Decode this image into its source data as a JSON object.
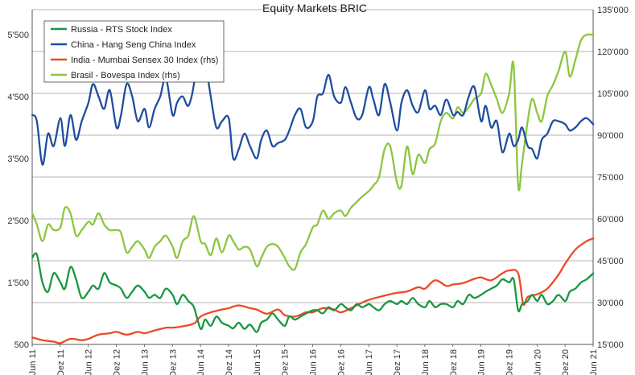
{
  "chart_data": {
    "type": "line",
    "title": "Equity Markets BRIC",
    "xlabel": "",
    "ylabel_left": "",
    "ylabel_right": "",
    "ylim_left": [
      500,
      5900
    ],
    "ylim_right": [
      15000,
      135000
    ],
    "left_ticks": [
      "500",
      "1'500",
      "2'500",
      "3'500",
      "4'500",
      "5'500"
    ],
    "left_tick_values": [
      500,
      1500,
      2500,
      3500,
      4500,
      5500
    ],
    "right_ticks": [
      "15'000",
      "30'000",
      "45'000",
      "60'000",
      "75'000",
      "90'000",
      "105'000",
      "120'000",
      "135'000"
    ],
    "right_tick_values": [
      15000,
      30000,
      45000,
      60000,
      75000,
      90000,
      105000,
      120000,
      135000
    ],
    "x_range": [
      2011.417,
      2021.417
    ],
    "x_tick_labels": [
      "Jun 11",
      "Dez 11",
      "Jun 12",
      "Dez 12",
      "Jun 13",
      "Dez 13",
      "Jun 14",
      "Dez 14",
      "Jun 15",
      "Dez 15",
      "Jun 16",
      "Dez 16",
      "Jun 17",
      "Dez 17",
      "Jun 18",
      "Dez 18",
      "Jun 19",
      "Dez 19",
      "Jun 20",
      "Dez 20",
      "Jun 21"
    ],
    "x_tick_positions": [
      2011.417,
      2011.917,
      2012.417,
      2012.917,
      2013.417,
      2013.917,
      2014.417,
      2014.917,
      2015.417,
      2015.917,
      2016.417,
      2016.917,
      2017.417,
      2017.917,
      2018.417,
      2018.917,
      2019.417,
      2019.917,
      2020.417,
      2020.917,
      2021.417
    ],
    "grid": "horizontal",
    "legend_position": "top-left",
    "colors": {
      "russia": "#1a9640",
      "china": "#1f4e9e",
      "india": "#ec4a24",
      "brasil": "#8cc63f",
      "grid": "#9a9a9a",
      "axis": "#555555"
    },
    "series": [
      {
        "name": "Russia - RTS Stock Index",
        "axis": "left",
        "color": "#1a9640",
        "x": [
          2011.42,
          2011.5,
          2011.6,
          2011.7,
          2011.8,
          2011.92,
          2012.0,
          2012.1,
          2012.2,
          2012.3,
          2012.42,
          2012.5,
          2012.6,
          2012.7,
          2012.8,
          2012.92,
          2013.0,
          2013.1,
          2013.2,
          2013.3,
          2013.42,
          2013.5,
          2013.6,
          2013.7,
          2013.8,
          2013.92,
          2014.0,
          2014.1,
          2014.2,
          2014.3,
          2014.42,
          2014.5,
          2014.6,
          2014.7,
          2014.8,
          2014.92,
          2015.0,
          2015.1,
          2015.2,
          2015.3,
          2015.42,
          2015.5,
          2015.6,
          2015.7,
          2015.8,
          2015.92,
          2016.0,
          2016.1,
          2016.2,
          2016.3,
          2016.42,
          2016.5,
          2016.6,
          2016.7,
          2016.8,
          2016.92,
          2017.0,
          2017.1,
          2017.2,
          2017.3,
          2017.42,
          2017.5,
          2017.6,
          2017.7,
          2017.8,
          2017.92,
          2018.0,
          2018.1,
          2018.2,
          2018.3,
          2018.42,
          2018.5,
          2018.6,
          2018.7,
          2018.8,
          2018.92,
          2019.0,
          2019.1,
          2019.2,
          2019.3,
          2019.42,
          2019.5,
          2019.6,
          2019.7,
          2019.8,
          2019.92,
          2020.0,
          2020.08,
          2020.15,
          2020.25,
          2020.33,
          2020.42,
          2020.5,
          2020.6,
          2020.7,
          2020.8,
          2020.92,
          2021.0,
          2021.1,
          2021.2,
          2021.3,
          2021.42
        ],
        "values": [
          1900,
          1950,
          1500,
          1350,
          1650,
          1500,
          1400,
          1750,
          1550,
          1250,
          1350,
          1450,
          1400,
          1650,
          1500,
          1450,
          1400,
          1250,
          1350,
          1450,
          1350,
          1250,
          1300,
          1250,
          1400,
          1300,
          1150,
          1300,
          1200,
          1100,
          750,
          900,
          800,
          950,
          850,
          800,
          760,
          850,
          750,
          820,
          700,
          850,
          900,
          1000,
          900,
          800,
          950,
          900,
          950,
          1000,
          1050,
          1050,
          1000,
          1100,
          1050,
          1150,
          1100,
          1050,
          1150,
          1100,
          1150,
          1100,
          1050,
          1150,
          1200,
          1150,
          1200,
          1150,
          1250,
          1150,
          1100,
          1200,
          1100,
          1150,
          1150,
          1100,
          1200,
          1150,
          1300,
          1250,
          1300,
          1350,
          1400,
          1450,
          1550,
          1500,
          1550,
          1050,
          1150,
          1200,
          1300,
          1200,
          1300,
          1150,
          1200,
          1300,
          1200,
          1350,
          1400,
          1500,
          1550,
          1650
        ]
      },
      {
        "name": "China - Hang Seng China Index",
        "axis": "left",
        "color": "#1f4e9e",
        "x": [
          2011.42,
          2011.5,
          2011.6,
          2011.7,
          2011.8,
          2011.92,
          2012.0,
          2012.1,
          2012.2,
          2012.3,
          2012.42,
          2012.5,
          2012.6,
          2012.7,
          2012.8,
          2012.92,
          2013.0,
          2013.1,
          2013.2,
          2013.3,
          2013.42,
          2013.5,
          2013.6,
          2013.7,
          2013.8,
          2013.92,
          2014.0,
          2014.1,
          2014.2,
          2014.3,
          2014.42,
          2014.5,
          2014.6,
          2014.7,
          2014.8,
          2014.92,
          2015.0,
          2015.1,
          2015.2,
          2015.3,
          2015.42,
          2015.5,
          2015.6,
          2015.7,
          2015.8,
          2015.92,
          2016.0,
          2016.1,
          2016.2,
          2016.3,
          2016.42,
          2016.5,
          2016.6,
          2016.7,
          2016.8,
          2016.92,
          2017.0,
          2017.1,
          2017.2,
          2017.3,
          2017.42,
          2017.5,
          2017.6,
          2017.7,
          2017.8,
          2017.92,
          2018.0,
          2018.1,
          2018.2,
          2018.3,
          2018.42,
          2018.5,
          2018.6,
          2018.7,
          2018.8,
          2018.92,
          2019.0,
          2019.1,
          2019.2,
          2019.3,
          2019.42,
          2019.5,
          2019.6,
          2019.7,
          2019.8,
          2019.92,
          2020.0,
          2020.08,
          2020.15,
          2020.25,
          2020.33,
          2020.42,
          2020.5,
          2020.6,
          2020.7,
          2020.8,
          2020.92,
          2021.0,
          2021.1,
          2021.2,
          2021.3,
          2021.42
        ],
        "values": [
          4200,
          4100,
          3400,
          3900,
          3700,
          4150,
          3700,
          4200,
          3800,
          4100,
          4400,
          4700,
          4500,
          4300,
          4600,
          4000,
          4200,
          4700,
          4500,
          4100,
          4300,
          4000,
          4300,
          4500,
          4800,
          4200,
          4400,
          4500,
          4350,
          4700,
          5600,
          5100,
          4500,
          4000,
          4100,
          4150,
          3500,
          3650,
          3900,
          3700,
          3500,
          3800,
          3950,
          3700,
          3750,
          3800,
          3950,
          4200,
          4300,
          4000,
          4100,
          4500,
          4550,
          4850,
          4500,
          4400,
          4650,
          4400,
          4150,
          4200,
          4650,
          4450,
          4200,
          4700,
          4400,
          3950,
          4400,
          4600,
          4350,
          4250,
          4600,
          4300,
          4350,
          4200,
          4450,
          4200,
          4250,
          4200,
          4500,
          4650,
          4100,
          4350,
          4000,
          4100,
          3600,
          3900,
          3700,
          3800,
          4000,
          3700,
          3650,
          3500,
          3800,
          3900,
          4100,
          4100,
          4050,
          3950,
          4000,
          4100,
          4150,
          4050
        ]
      },
      {
        "name": "India - Mumbai Sensex 30 Index (rhs)",
        "axis": "right",
        "color": "#ec4a24",
        "x": [
          2011.42,
          2011.6,
          2011.8,
          2011.92,
          2012.1,
          2012.3,
          2012.42,
          2012.6,
          2012.8,
          2012.92,
          2013.1,
          2013.3,
          2013.42,
          2013.6,
          2013.8,
          2013.92,
          2014.1,
          2014.3,
          2014.42,
          2014.6,
          2014.8,
          2014.92,
          2015.1,
          2015.3,
          2015.42,
          2015.6,
          2015.8,
          2015.92,
          2016.1,
          2016.3,
          2016.42,
          2016.6,
          2016.8,
          2016.92,
          2017.1,
          2017.3,
          2017.42,
          2017.6,
          2017.8,
          2017.92,
          2018.1,
          2018.3,
          2018.42,
          2018.6,
          2018.8,
          2018.92,
          2019.1,
          2019.3,
          2019.42,
          2019.6,
          2019.8,
          2019.92,
          2020.08,
          2020.17,
          2020.25,
          2020.42,
          2020.6,
          2020.8,
          2020.92,
          2021.1,
          2021.3,
          2021.42
        ],
        "values": [
          17500,
          16500,
          16000,
          15500,
          17000,
          16500,
          17000,
          18500,
          19000,
          19500,
          18500,
          19500,
          19000,
          20000,
          21000,
          21000,
          21500,
          22500,
          25000,
          26500,
          27500,
          28000,
          29000,
          28000,
          27500,
          26000,
          27500,
          25500,
          25000,
          26500,
          26500,
          28000,
          27500,
          26500,
          28000,
          30000,
          31000,
          32000,
          33000,
          33500,
          34000,
          35500,
          35000,
          38000,
          36000,
          36500,
          37000,
          38500,
          39000,
          38000,
          40500,
          41500,
          40500,
          29500,
          32000,
          33000,
          35000,
          40000,
          44000,
          49000,
          52000,
          53000
        ]
      },
      {
        "name": "Brasil - Bovespa Index (rhs)",
        "axis": "right",
        "color": "#8cc63f",
        "x": [
          2011.42,
          2011.5,
          2011.6,
          2011.7,
          2011.8,
          2011.92,
          2012.0,
          2012.1,
          2012.2,
          2012.3,
          2012.42,
          2012.5,
          2012.6,
          2012.7,
          2012.8,
          2012.92,
          2013.0,
          2013.1,
          2013.2,
          2013.3,
          2013.42,
          2013.5,
          2013.6,
          2013.7,
          2013.8,
          2013.92,
          2014.0,
          2014.1,
          2014.2,
          2014.3,
          2014.42,
          2014.5,
          2014.6,
          2014.7,
          2014.8,
          2014.92,
          2015.0,
          2015.1,
          2015.2,
          2015.3,
          2015.42,
          2015.5,
          2015.6,
          2015.7,
          2015.8,
          2015.92,
          2016.0,
          2016.1,
          2016.2,
          2016.3,
          2016.42,
          2016.5,
          2016.6,
          2016.7,
          2016.8,
          2016.92,
          2017.0,
          2017.1,
          2017.2,
          2017.3,
          2017.42,
          2017.5,
          2017.6,
          2017.7,
          2017.8,
          2017.92,
          2018.0,
          2018.1,
          2018.2,
          2018.3,
          2018.42,
          2018.5,
          2018.6,
          2018.7,
          2018.8,
          2018.92,
          2019.0,
          2019.1,
          2019.2,
          2019.3,
          2019.42,
          2019.5,
          2019.6,
          2019.7,
          2019.8,
          2019.92,
          2020.0,
          2020.08,
          2020.15,
          2020.25,
          2020.33,
          2020.42,
          2020.5,
          2020.6,
          2020.7,
          2020.8,
          2020.92,
          2021.0,
          2021.1,
          2021.2,
          2021.3,
          2021.42
        ],
        "values": [
          62000,
          58000,
          52000,
          58000,
          56000,
          57000,
          64000,
          62000,
          54000,
          56000,
          59000,
          58000,
          62000,
          58000,
          56000,
          56000,
          55000,
          48000,
          50000,
          52000,
          49000,
          46000,
          50000,
          52000,
          54000,
          50000,
          46000,
          52000,
          54000,
          61000,
          52000,
          51000,
          47000,
          53000,
          48000,
          54000,
          52000,
          49000,
          50000,
          49000,
          43000,
          46000,
          50000,
          51000,
          50000,
          46000,
          43000,
          42000,
          48000,
          51000,
          57000,
          58000,
          63000,
          60000,
          62000,
          63000,
          61000,
          64000,
          66000,
          68000,
          70000,
          72000,
          75000,
          85000,
          86000,
          73000,
          72000,
          86000,
          76000,
          83000,
          80000,
          85000,
          87000,
          95000,
          98000,
          96000,
          100000,
          98000,
          100000,
          103000,
          105000,
          112000,
          108000,
          103000,
          98000,
          105000,
          115000,
          72000,
          80000,
          95000,
          103000,
          98000,
          95000,
          104000,
          108000,
          113000,
          120000,
          111000,
          117000,
          124000,
          126000,
          126000
        ]
      }
    ]
  }
}
